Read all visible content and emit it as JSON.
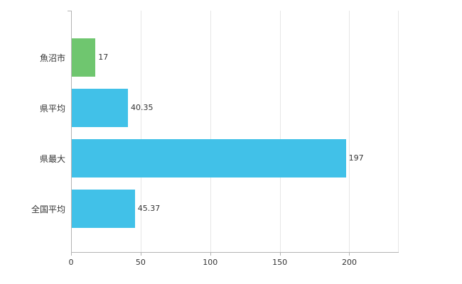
{
  "chart_data": {
    "type": "bar",
    "orientation": "horizontal",
    "title": "",
    "xlabel": "",
    "ylabel": "",
    "categories": [
      "魚沼市",
      "県平均",
      "県最大",
      "全国平均"
    ],
    "values": [
      17,
      40.35,
      197,
      45.37
    ],
    "value_labels": [
      "17",
      "40.35",
      "197",
      "45.37"
    ],
    "bar_colors": [
      "#6fc66f",
      "#41c1e8",
      "#41c1e8",
      "#41c1e8"
    ],
    "xlim": [
      0,
      235
    ],
    "xticks": [
      0,
      50,
      100,
      150,
      200
    ],
    "xtick_labels": [
      "0",
      "50",
      "100",
      "150",
      "200"
    ],
    "grid": true,
    "legend": false
  },
  "colors": {
    "axis": "#b3b3b3",
    "grid": "#e6e6e6",
    "text": "#333333",
    "background": "#ffffff"
  }
}
